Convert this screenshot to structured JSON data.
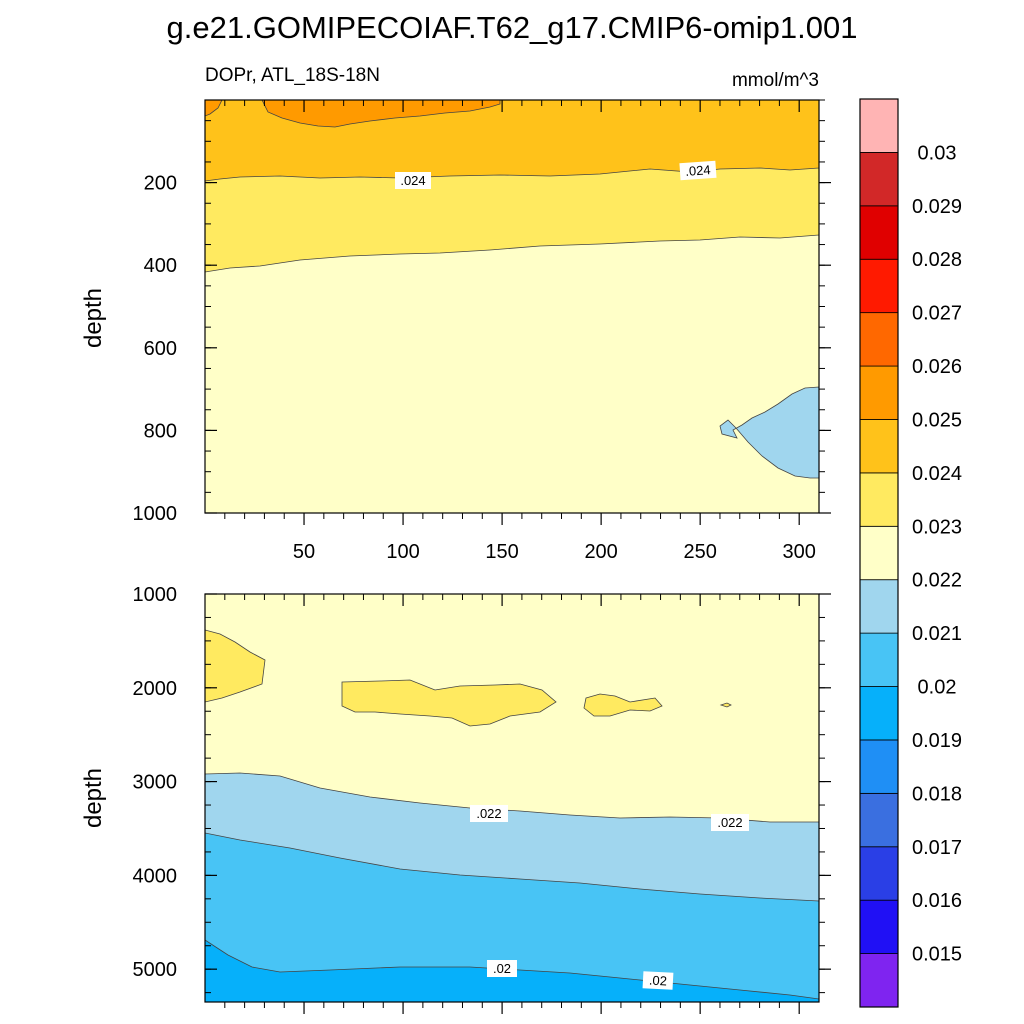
{
  "title": "g.e21.GOMIPECOIAF.T62_g17.CMIP6-omip1.001",
  "chart_data": {
    "type": "contour",
    "variable": "DOPr, ATL_18S-18N",
    "units": "mmol/m^3",
    "colorbar": {
      "levels": [
        "0.015",
        "0.016",
        "0.017",
        "0.018",
        "0.019",
        "0.02",
        "0.021",
        "0.022",
        "0.023",
        "0.024",
        "0.025",
        "0.026",
        "0.027",
        "0.028",
        "0.029",
        "0.03"
      ],
      "colors": [
        "#7f24f0",
        "#2010f5",
        "#2a3fe6",
        "#3a6fe0",
        "#1f8ff5",
        "#06b0fa",
        "#48c4f5",
        "#a0d6ee",
        "#ffffc8",
        "#ffea60",
        "#ffc21a",
        "#ff9a00",
        "#ff6800",
        "#ff1a00",
        "#e00000",
        "#d22828",
        "#ffb4b4"
      ]
    },
    "panels": [
      {
        "name": "upper",
        "ylabel": "depth",
        "yrange": [
          0,
          1000
        ],
        "xrange": [
          0,
          310
        ],
        "y_ticks": [
          "200",
          "400",
          "600",
          "800",
          "1000"
        ],
        "x_ticks": [
          "50",
          "100",
          "150",
          "200",
          "250",
          "300"
        ],
        "contour_labels": [
          ".024",
          ".024"
        ]
      },
      {
        "name": "lower",
        "ylabel": "depth",
        "yrange": [
          1000,
          5350
        ],
        "xrange": [
          0,
          310
        ],
        "y_ticks": [
          "1000",
          "2000",
          "3000",
          "4000",
          "5000"
        ],
        "contour_labels": [
          ".022",
          ".022",
          ".02",
          ".02"
        ]
      }
    ]
  }
}
